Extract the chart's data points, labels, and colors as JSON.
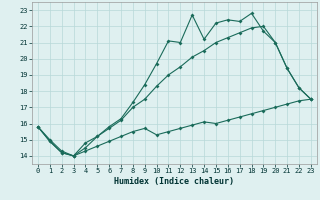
{
  "xlabel": "Humidex (Indice chaleur)",
  "x": [
    0,
    1,
    2,
    3,
    4,
    5,
    6,
    7,
    8,
    9,
    10,
    11,
    12,
    13,
    14,
    15,
    16,
    17,
    18,
    19,
    20,
    21,
    22,
    23
  ],
  "line_top": [
    15.8,
    15.0,
    14.3,
    14.0,
    14.5,
    15.2,
    15.8,
    16.3,
    17.3,
    18.4,
    19.7,
    21.1,
    21.0,
    22.7,
    21.2,
    22.2,
    22.4,
    22.3,
    22.8,
    21.7,
    21.0,
    19.4,
    18.2,
    17.5
  ],
  "line_mid": [
    15.8,
    14.9,
    14.2,
    14.0,
    14.8,
    15.2,
    15.7,
    16.2,
    17.0,
    17.5,
    18.3,
    19.0,
    19.5,
    20.1,
    20.5,
    21.0,
    21.3,
    21.6,
    21.9,
    22.0,
    21.0,
    19.4,
    18.2,
    17.5
  ],
  "line_bot_x": [
    0,
    1,
    2,
    3,
    4,
    5,
    6,
    7,
    8,
    9,
    10,
    11,
    12,
    13,
    14,
    15,
    16,
    17,
    18,
    19,
    20,
    21,
    22,
    23
  ],
  "line_bot": [
    15.8,
    14.9,
    14.2,
    14.0,
    14.3,
    14.6,
    14.9,
    15.2,
    15.5,
    15.7,
    15.3,
    15.5,
    15.7,
    15.9,
    16.1,
    16.0,
    16.2,
    16.4,
    16.6,
    16.8,
    17.0,
    17.2,
    17.4,
    17.5
  ],
  "bg_color": "#dff0f0",
  "grid_color": "#b8d8d8",
  "line_color": "#1a6b5a",
  "ylim": [
    13.5,
    23.5
  ],
  "xlim": [
    -0.5,
    23.5
  ],
  "yticks": [
    14,
    15,
    16,
    17,
    18,
    19,
    20,
    21,
    22,
    23
  ],
  "xticks": [
    0,
    1,
    2,
    3,
    4,
    5,
    6,
    7,
    8,
    9,
    10,
    11,
    12,
    13,
    14,
    15,
    16,
    17,
    18,
    19,
    20,
    21,
    22,
    23
  ]
}
